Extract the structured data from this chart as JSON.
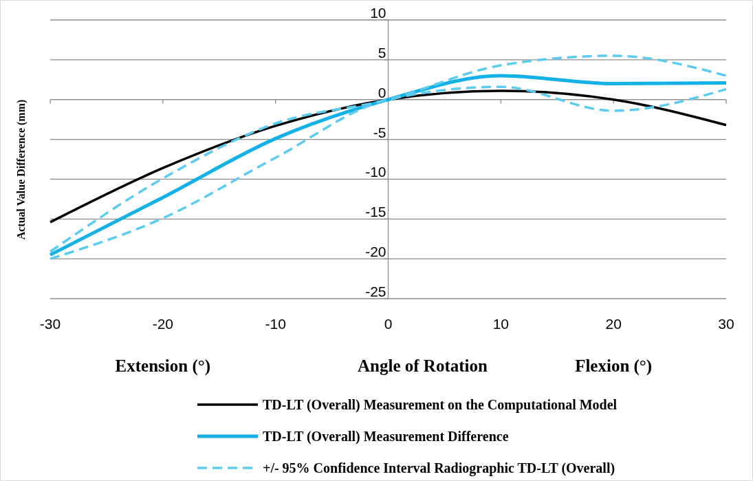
{
  "chart_data": {
    "type": "line",
    "xlabel": "Angle of Rotation",
    "ylabel": "Actual Value Difference (mm)",
    "annotations": [
      "Extension (°)",
      "Flexion (°)"
    ],
    "x": [
      -30,
      -20,
      -10,
      0,
      10,
      20,
      30
    ],
    "xlim": [
      -30,
      30
    ],
    "xticks": [
      -30,
      -20,
      -10,
      0,
      10,
      20,
      30
    ],
    "ylim": [
      -25,
      10
    ],
    "yticks": [
      -25,
      -20,
      -15,
      -10,
      -5,
      0,
      5,
      10
    ],
    "grid": "y",
    "legend": "bottom",
    "series": [
      {
        "name": "TD-LT (Overall) Measurement on the Computational Model",
        "color": "#000000",
        "values": [
          -15.4,
          -8.6,
          -3.3,
          0,
          1.1,
          0,
          -3.2
        ]
      },
      {
        "name": "TD-LT (Overall) Measurement Difference",
        "color": "#13b1e6",
        "values": [
          -19.5,
          -12.3,
          -4.9,
          0,
          3.0,
          2.0,
          2.1
        ]
      },
      {
        "name": "+/- 95% Confidence Interval Radiographic TD-LT (Overall)",
        "color": "#5bcbf0",
        "line_style": "dashed",
        "values": [
          -19.1,
          -9.9,
          -3.0,
          0,
          4.3,
          5.5,
          3.0
        ]
      },
      {
        "color": "#5bcbf0",
        "line_style": "dashed",
        "values": [
          -20,
          -14.9,
          -7.3,
          0,
          1.6,
          -1.4,
          1.3
        ]
      }
    ]
  }
}
